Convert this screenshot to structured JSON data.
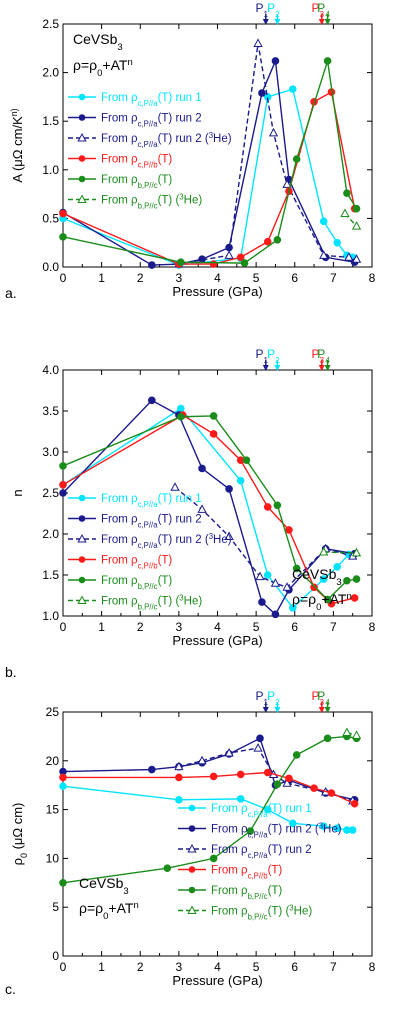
{
  "chart_data": [
    {
      "type": "line",
      "panel_label": "a.",
      "xlabel": "Pressure (GPa)",
      "ylabel": "A (μΩ cm/K²ⁿ)",
      "ylabel_parts": [
        "A (",
        "μΩ cm/K",
        "n",
        ")"
      ],
      "xlim": [
        0,
        8
      ],
      "ylim": [
        0,
        2.5
      ],
      "xticks": [
        0,
        1,
        2,
        3,
        4,
        5,
        6,
        7,
        8
      ],
      "yticks": [
        "0.0",
        "0.5",
        "1.0",
        "1.5",
        "2.0",
        "2.5"
      ],
      "annotations": [
        "CeVSb3",
        "ρ=ρ0+ATn"
      ],
      "annotation_parts": {
        "material": [
          "CeVSb",
          "3"
        ],
        "formula": [
          "ρ=ρ",
          "0",
          "+AT",
          "n"
        ]
      },
      "legend_position": "center-left",
      "pressure_markers": [
        {
          "label": "P1",
          "parts": [
            "P",
            "1"
          ],
          "x": 5.25,
          "color": "#1a1a8c"
        },
        {
          "label": "P2",
          "parts": [
            "P",
            "2"
          ],
          "x": 5.55,
          "color": "#00e5ff"
        },
        {
          "label": "P3",
          "parts": [
            "P",
            "3"
          ],
          "x": 6.7,
          "color": "#ff1a1a"
        },
        {
          "label": "P4",
          "parts": [
            "P",
            "4"
          ],
          "x": 6.85,
          "color": "#1a8c1a"
        }
      ],
      "series": [
        {
          "name": "From ρc,P//a(T) run 1",
          "name_parts": [
            "From ρ",
            "c,P//a",
            "(T) run 1"
          ],
          "color": "#00e5ff",
          "marker": "circle",
          "dashed": false,
          "x": [
            0,
            3.0,
            4.6,
            5.3,
            5.95,
            6.75,
            7.1,
            7.35,
            7.5
          ],
          "y": [
            0.5,
            0.02,
            0.09,
            1.75,
            1.83,
            0.47,
            0.25,
            0.12,
            0.1
          ]
        },
        {
          "name": "From ρc,P//a(T) run 2",
          "name_parts": [
            "From ρ",
            "c,P//a",
            "(T) run 2"
          ],
          "color": "#1a1a8c",
          "marker": "circle",
          "dashed": false,
          "x": [
            0,
            2.3,
            3.0,
            3.6,
            4.3,
            5.15,
            5.5,
            5.85,
            6.8,
            7.55
          ],
          "y": [
            0.56,
            0.02,
            0.03,
            0.08,
            0.2,
            1.79,
            2.12,
            0.9,
            0.1,
            0.05
          ]
        },
        {
          "name": "From ρc,P//a(T) run 2 (3He)",
          "name_parts": [
            "From ρ",
            "c,P//a",
            "(T) run 2 (",
            "3",
            "He)"
          ],
          "color": "#1a1a8c",
          "marker": "triangle",
          "dashed": true,
          "x": [
            3.0,
            4.3,
            5.05,
            5.45,
            5.8,
            6.75,
            7.4,
            7.6
          ],
          "y": [
            0.03,
            0.12,
            2.3,
            1.38,
            0.85,
            0.12,
            0.1,
            0.08
          ]
        },
        {
          "name": "From ρc,P//b(T)",
          "name_parts": [
            "From ρ",
            "c,P//b",
            "(T)"
          ],
          "color": "#ff1a1a",
          "marker": "circle",
          "dashed": false,
          "x": [
            0,
            3.0,
            3.9,
            4.6,
            5.3,
            5.85,
            6.5,
            6.95,
            7.55
          ],
          "y": [
            0.55,
            0.03,
            0.03,
            0.1,
            0.26,
            0.78,
            1.7,
            1.8,
            0.6
          ]
        },
        {
          "name": "From ρb,P//c(T)",
          "name_parts": [
            "From ρ",
            "b,P//c",
            "(T)"
          ],
          "color": "#1a8c1a",
          "marker": "circle",
          "dashed": false,
          "x": [
            0,
            3.05,
            4.7,
            5.55,
            6.05,
            6.85,
            7.35,
            7.6
          ],
          "y": [
            0.31,
            0.05,
            0.04,
            0.28,
            1.11,
            2.12,
            0.76,
            0.6
          ]
        },
        {
          "name": "From ρb,P//c(T) (3He)",
          "name_parts": [
            "From ρ",
            "b,P//c",
            "(T) (",
            "3",
            "He)"
          ],
          "color": "#1a8c1a",
          "marker": "triangle",
          "dashed": true,
          "x": [
            7.3,
            7.6
          ],
          "y": [
            0.55,
            0.42
          ]
        }
      ]
    },
    {
      "type": "line",
      "panel_label": "b.",
      "xlabel": "Pressure (GPa)",
      "ylabel": "n",
      "xlim": [
        0,
        8
      ],
      "ylim": [
        1.0,
        4.0
      ],
      "xticks": [
        0,
        1,
        2,
        3,
        4,
        5,
        6,
        7,
        8
      ],
      "yticks": [
        "1.0",
        "1.5",
        "2.0",
        "2.5",
        "3.0",
        "3.5",
        "4.0"
      ],
      "annotations": [
        "CeVSb3",
        "ρ=ρ0+ATn"
      ],
      "annotation_parts": {
        "material": [
          "CeVSb",
          "3"
        ],
        "formula": [
          "ρ=ρ",
          "0",
          "+AT",
          "n"
        ]
      },
      "legend_position": "bottom-left",
      "pressure_markers": [
        {
          "label": "P1",
          "parts": [
            "P",
            "1"
          ],
          "x": 5.25,
          "color": "#1a1a8c"
        },
        {
          "label": "P2",
          "parts": [
            "P",
            "2"
          ],
          "x": 5.55,
          "color": "#00e5ff"
        },
        {
          "label": "P3",
          "parts": [
            "P",
            "3"
          ],
          "x": 6.7,
          "color": "#ff1a1a"
        },
        {
          "label": "P4",
          "parts": [
            "P",
            "4"
          ],
          "x": 6.85,
          "color": "#1a8c1a"
        }
      ],
      "series": [
        {
          "name": "From ρc,P//a(T) run 1",
          "name_parts": [
            "From ρ",
            "c,P//a",
            "(T) run 1"
          ],
          "color": "#00e5ff",
          "marker": "circle",
          "dashed": false,
          "x": [
            0,
            3.05,
            4.6,
            5.3,
            5.95,
            6.75,
            7.1,
            7.4
          ],
          "y": [
            2.6,
            3.53,
            2.65,
            1.5,
            1.1,
            1.45,
            1.6,
            1.75
          ]
        },
        {
          "name": "From ρc,P//a(T) run 2",
          "name_parts": [
            "From ρ",
            "c,P//a",
            "(T) run 2"
          ],
          "color": "#1a1a8c",
          "marker": "circle",
          "dashed": false,
          "x": [
            0,
            2.3,
            3.0,
            3.6,
            4.3,
            5.15,
            5.5,
            5.85,
            6.8,
            7.55
          ],
          "y": [
            2.5,
            3.63,
            3.45,
            2.8,
            2.55,
            1.17,
            1.02,
            1.32,
            1.82,
            1.76
          ]
        },
        {
          "name": "From ρc,P//a(T) run 2 (3He)",
          "name_parts": [
            "From ρ",
            "c,P//a",
            "(T) run 2 (",
            "3",
            "He)"
          ],
          "color": "#1a1a8c",
          "marker": "triangle",
          "dashed": true,
          "x": [
            2.9,
            3.6,
            4.3,
            5.1,
            5.5,
            5.8,
            6.8,
            7.5
          ],
          "y": [
            2.57,
            2.3,
            1.97,
            1.48,
            1.4,
            1.35,
            1.82,
            1.73
          ]
        },
        {
          "name": "From ρc,P//b(T)",
          "name_parts": [
            "From ρ",
            "c,P//b",
            "(T)"
          ],
          "color": "#ff1a1a",
          "marker": "circle",
          "dashed": false,
          "x": [
            0,
            3.1,
            3.9,
            4.6,
            5.3,
            5.85,
            6.5,
            6.95,
            7.55
          ],
          "y": [
            2.6,
            3.45,
            3.22,
            2.9,
            2.33,
            2.05,
            1.35,
            1.15,
            1.22
          ]
        },
        {
          "name": "From ρb,P//c(T)",
          "name_parts": [
            "From ρ",
            "b,P//c",
            "(T)"
          ],
          "color": "#1a8c1a",
          "marker": "circle",
          "dashed": false,
          "x": [
            0,
            3.05,
            3.9,
            4.75,
            5.55,
            6.05,
            6.85,
            7.35,
            7.6
          ],
          "y": [
            2.83,
            3.43,
            3.44,
            2.9,
            2.35,
            1.58,
            1.2,
            1.43,
            1.45
          ]
        },
        {
          "name": "From ρb,P//c(T) (3He)",
          "name_parts": [
            "From ρ",
            "b,P//c",
            "(T) (",
            "3",
            "He)"
          ],
          "color": "#1a8c1a",
          "marker": "triangle",
          "dashed": true,
          "x": [
            6.75,
            7.6
          ],
          "y": [
            1.78,
            1.77
          ]
        }
      ]
    },
    {
      "type": "line",
      "panel_label": "c.",
      "xlabel": "Pressure (GPa)",
      "ylabel": "ρ0 (μΩ cm)",
      "ylabel_parts": [
        "ρ",
        "0",
        " (μΩ cm)"
      ],
      "xlim": [
        0,
        8
      ],
      "ylim": [
        0,
        25
      ],
      "xticks": [
        0,
        1,
        2,
        3,
        4,
        5,
        6,
        7,
        8
      ],
      "yticks": [
        "0",
        "5",
        "10",
        "15",
        "20",
        "25"
      ],
      "annotations": [
        "CeVSb3",
        "ρ=ρ0+ATn"
      ],
      "annotation_parts": {
        "material": [
          "CeVSb",
          "3"
        ],
        "formula": [
          "ρ=ρ",
          "0",
          "+AT",
          "n"
        ]
      },
      "legend_position": "bottom-right",
      "pressure_markers": [
        {
          "label": "P1",
          "parts": [
            "P",
            "1"
          ],
          "x": 5.25,
          "color": "#1a1a8c"
        },
        {
          "label": "P2",
          "parts": [
            "P",
            "2"
          ],
          "x": 5.55,
          "color": "#00e5ff"
        },
        {
          "label": "P3",
          "parts": [
            "P",
            "3"
          ],
          "x": 6.7,
          "color": "#ff1a1a"
        },
        {
          "label": "P4",
          "parts": [
            "P",
            "4"
          ],
          "x": 6.85,
          "color": "#1a8c1a"
        }
      ],
      "series": [
        {
          "name": "From ρc,P//a(T) run 1",
          "name_parts": [
            "From ρ",
            "c,P//a",
            "(T) run 1"
          ],
          "color": "#00e5ff",
          "marker": "circle",
          "dashed": false,
          "x": [
            0,
            3.0,
            4.6,
            5.3,
            5.95,
            6.75,
            7.1,
            7.35,
            7.5
          ],
          "y": [
            17.4,
            16.0,
            16.1,
            15.0,
            13.6,
            13.3,
            13.1,
            12.9,
            12.9
          ]
        },
        {
          "name": "From ρc,P//a(T) run 2 (3He)",
          "name_parts": [
            "From ρ",
            "c,P//a",
            "(T) run 2 (",
            "3",
            "He)"
          ],
          "color": "#1a1a8c",
          "marker": "circle",
          "dashed": false,
          "x": [
            0,
            2.3,
            3.0,
            3.6,
            4.3,
            5.1,
            5.5,
            5.85,
            6.8,
            7.55
          ],
          "y": [
            18.9,
            19.1,
            19.4,
            19.8,
            20.7,
            22.3,
            17.5,
            18.0,
            16.7,
            16.0
          ]
        },
        {
          "name": "From ρc,P//a(T) run 2",
          "name_parts": [
            "From ρ",
            "c,P//a",
            "(T) run 2"
          ],
          "color": "#1a1a8c",
          "marker": "triangle",
          "dashed": true,
          "x": [
            3.0,
            3.6,
            4.3,
            5.05,
            5.45,
            5.8,
            6.8,
            7.5
          ],
          "y": [
            19.4,
            20.0,
            20.8,
            21.3,
            18.6,
            17.7,
            16.8,
            15.9
          ]
        },
        {
          "name": "From ρc,P//b(T)",
          "name_parts": [
            "From ρ",
            "c,P//b",
            "(T)"
          ],
          "color": "#ff1a1a",
          "marker": "circle",
          "dashed": false,
          "x": [
            0,
            3.0,
            3.9,
            4.6,
            5.3,
            5.85,
            6.5,
            6.95,
            7.55
          ],
          "y": [
            18.3,
            18.3,
            18.4,
            18.6,
            18.8,
            18.2,
            17.2,
            16.7,
            15.6
          ]
        },
        {
          "name": "From ρb,P//c(T)",
          "name_parts": [
            "From ρ",
            "b,P//c",
            "(T)"
          ],
          "color": "#1a8c1a",
          "marker": "circle",
          "dashed": false,
          "x": [
            0,
            2.7,
            3.9,
            4.85,
            5.55,
            6.05,
            6.85,
            7.35,
            7.6
          ],
          "y": [
            7.5,
            9.0,
            10.0,
            12.8,
            17.6,
            20.6,
            22.3,
            22.5,
            22.3
          ]
        },
        {
          "name": "From ρb,P//c(T) (3He)",
          "name_parts": [
            "From ρ",
            "b,P//c",
            "(T) (",
            "3",
            "He)"
          ],
          "color": "#1a8c1a",
          "marker": "triangle",
          "dashed": true,
          "x": [
            7.35,
            7.6
          ],
          "y": [
            22.9,
            22.6
          ]
        }
      ]
    }
  ]
}
